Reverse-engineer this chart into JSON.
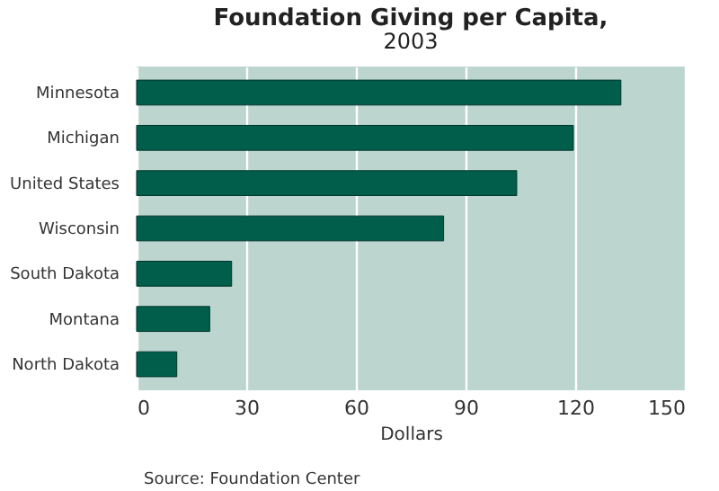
{
  "chart_data": {
    "type": "bar",
    "orientation": "horizontal",
    "title": "Foundation Giving per Capita,",
    "subtitle": "2003",
    "xlabel": "Dollars",
    "categories": [
      "Minnesota",
      "Michigan",
      "United States",
      "Wisconsin",
      "South Dakota",
      "Montana",
      "North Dakota"
    ],
    "values": [
      132.5,
      119.5,
      104,
      84,
      26,
      20,
      11
    ],
    "color": "#005e4b",
    "xlim": [
      0,
      150
    ],
    "xticks": [
      0,
      30,
      60,
      90,
      120,
      150
    ],
    "grid": "x",
    "annotations": [
      "Source: Foundation Center"
    ]
  }
}
